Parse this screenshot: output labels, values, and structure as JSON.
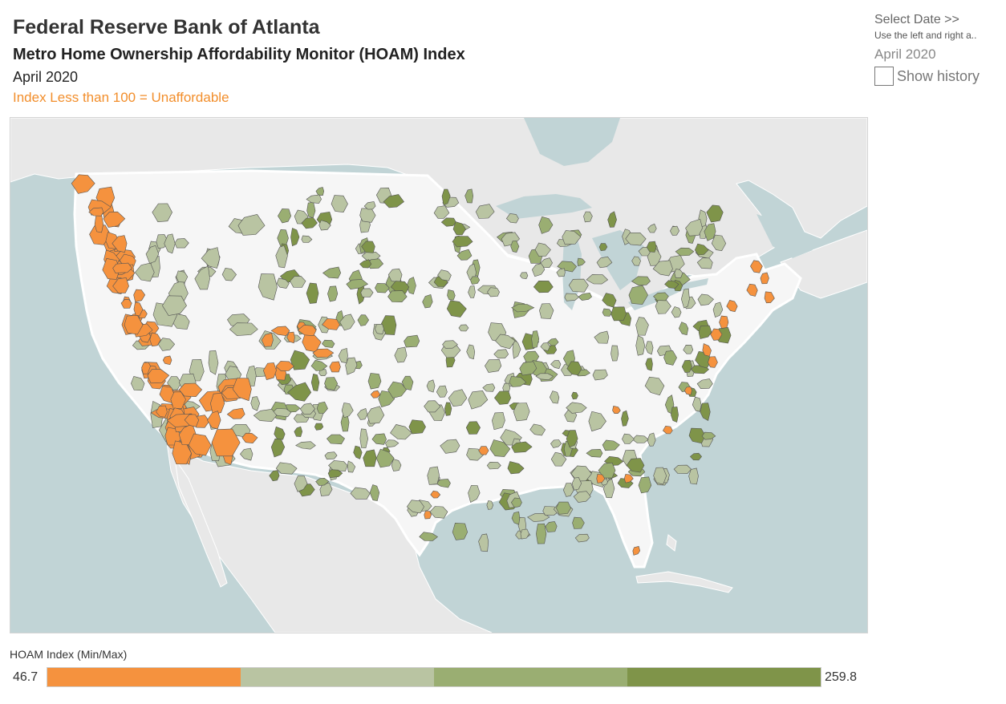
{
  "header": {
    "title": "Federal Reserve Bank of Atlanta",
    "subtitle": "Metro Home Ownership Affordability Monitor (HOAM) Index",
    "date": "April 2020",
    "note": "Index Less than 100 = Unaffordable"
  },
  "controls": {
    "select_label": "Select Date >>",
    "hint": "Use the left and right a..",
    "selected_date": "April 2020",
    "show_history_label": "Show history",
    "show_history_checked": false
  },
  "legend": {
    "title": "HOAM Index (Min/Max)",
    "min": "46.7",
    "max": "259.8",
    "colors": [
      "#f5923e",
      "#b9c4a2",
      "#9aae72",
      "#7f9449"
    ]
  },
  "map_colors": {
    "water": "#c1d4d6",
    "land": "#e8e8e8",
    "us_land": "#f6f6f6",
    "unaffordable": "#f5923e",
    "affordable_light": "#b9c4a2",
    "affordable_mid": "#9aae72",
    "affordable_dark": "#7f9449"
  }
}
